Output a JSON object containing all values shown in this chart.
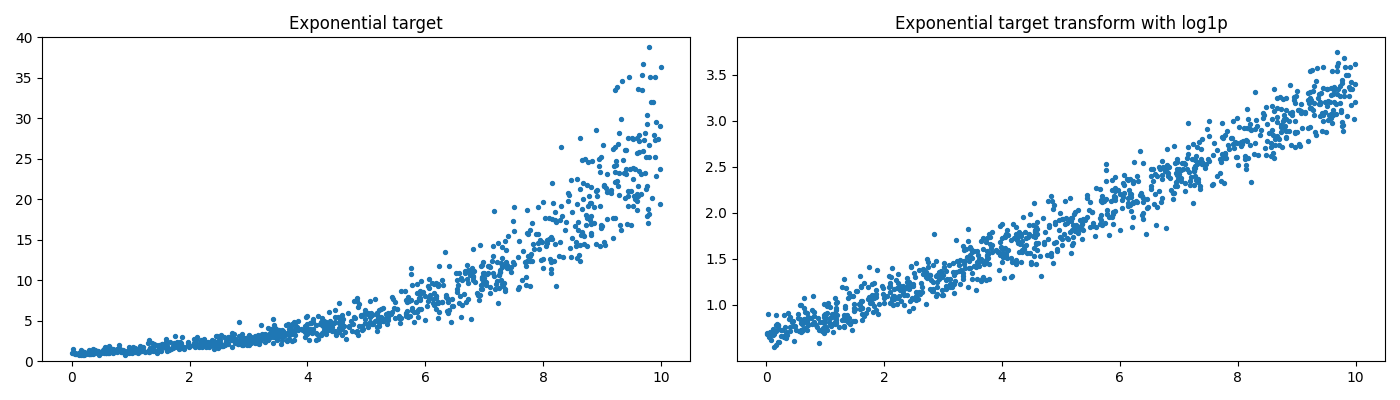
{
  "title1": "Exponential target",
  "title2": "Exponential target transform with log1p",
  "n_points": 1000,
  "random_seed": 0,
  "x_min": 0,
  "x_max": 10,
  "dot_color": "#1f77b4",
  "dot_size": 8,
  "dot_alpha": 1.0,
  "fig_width": 14.0,
  "fig_height": 4.0,
  "dpi": 100,
  "ylim1": [
    0,
    40
  ],
  "y1_ticks": [
    0,
    5,
    10,
    15,
    20,
    25,
    30,
    35,
    40
  ],
  "y2_ticks": [
    1.0,
    1.5,
    2.0,
    2.5,
    3.0,
    3.5
  ]
}
